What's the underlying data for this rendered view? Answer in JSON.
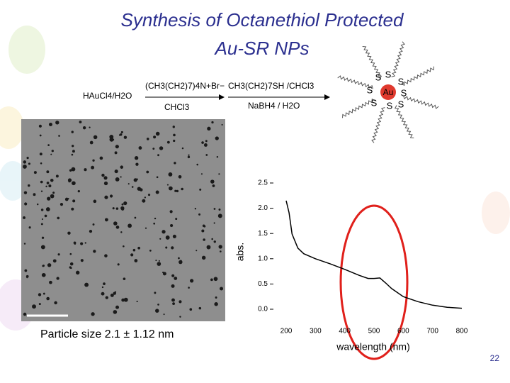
{
  "title_lines": [
    "Synthesis of Octanethiol Protected",
    "Au-SR NPs"
  ],
  "reaction": {
    "reactant": "HAuCl4/H2O",
    "step1_above": "(CH3(CH2)7)4N+Br−",
    "step1_below": "CHCl3",
    "step2_above": "CH3(CH2)7SH /CHCl3",
    "step2_below": "NaBH4 / H2O"
  },
  "cluster": {
    "core": "Au",
    "ligand": "S"
  },
  "caption": "Particle size 2.1 ± 1.12 nm",
  "page_number": "22",
  "chart_data": {
    "type": "line",
    "xlabel": "wavelength (nm)",
    "ylabel": "abs.",
    "x": [
      200,
      210,
      220,
      240,
      260,
      300,
      350,
      400,
      450,
      480,
      500,
      520,
      540,
      560,
      600,
      650,
      700,
      750,
      800
    ],
    "series": [
      {
        "color": "#000000",
        "values": [
          2.15,
          1.91,
          1.49,
          1.21,
          1.1,
          1.0,
          0.9,
          0.79,
          0.67,
          0.61,
          0.61,
          0.62,
          0.52,
          0.41,
          0.25,
          0.15,
          0.08,
          0.04,
          0.02
        ]
      }
    ],
    "xlim": [
      200,
      800
    ],
    "xticks": [
      200,
      300,
      400,
      500,
      600,
      700,
      800
    ],
    "ylim": [
      0,
      2.5
    ],
    "yticks": [
      {
        "value": 0,
        "label": "0.0"
      },
      0.5,
      {
        "value": 1,
        "label": "1.0"
      },
      1.5,
      {
        "value": 2,
        "label": "2.0"
      },
      2.5
    ],
    "grid": false
  }
}
